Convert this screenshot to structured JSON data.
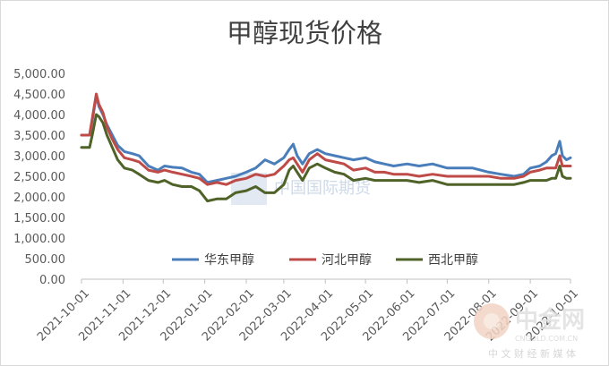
{
  "chart_data": {
    "type": "line",
    "title": "甲醇现货价格",
    "xlabel": "",
    "ylabel": "",
    "ylim": [
      0,
      5000
    ],
    "yticks": [
      "0.00",
      "500.00",
      "1,000.00",
      "1,500.00",
      "2,000.00",
      "2,500.00",
      "3,000.00",
      "3,500.00",
      "4,000.00",
      "4,500.00",
      "5,000.00"
    ],
    "xlim": [
      "2021-10-01",
      "2022-10-01"
    ],
    "xticks": [
      "2021-10-01",
      "2021-11-01",
      "2021-12-01",
      "2022-01-01",
      "2022-02-01",
      "2022-03-01",
      "2022-04-01",
      "2022-05-01",
      "2022-06-01",
      "2022-07-01",
      "2022-08-01",
      "2022-09-01",
      "2022-10-01"
    ],
    "grid": false,
    "legend_position": "bottom-center",
    "series": [
      {
        "name": "华东甲醇",
        "color": "#4a7ebb",
        "points": [
          [
            "2021-10-01",
            3500
          ],
          [
            "2021-10-07",
            3500
          ],
          [
            "2021-10-09",
            3850
          ],
          [
            "2021-10-12",
            4450
          ],
          [
            "2021-10-14",
            4200
          ],
          [
            "2021-10-17",
            4000
          ],
          [
            "2021-10-20",
            3750
          ],
          [
            "2021-10-24",
            3500
          ],
          [
            "2021-10-28",
            3250
          ],
          [
            "2021-11-02",
            3100
          ],
          [
            "2021-11-08",
            3050
          ],
          [
            "2021-11-13",
            3000
          ],
          [
            "2021-11-20",
            2750
          ],
          [
            "2021-11-27",
            2650
          ],
          [
            "2021-12-02",
            2750
          ],
          [
            "2021-12-08",
            2720
          ],
          [
            "2021-12-15",
            2700
          ],
          [
            "2021-12-22",
            2600
          ],
          [
            "2021-12-28",
            2550
          ],
          [
            "2022-01-03",
            2350
          ],
          [
            "2022-01-10",
            2400
          ],
          [
            "2022-01-17",
            2450
          ],
          [
            "2022-01-24",
            2500
          ],
          [
            "2022-02-01",
            2600
          ],
          [
            "2022-02-08",
            2700
          ],
          [
            "2022-02-15",
            2900
          ],
          [
            "2022-02-22",
            2800
          ],
          [
            "2022-03-01",
            2950
          ],
          [
            "2022-03-05",
            3150
          ],
          [
            "2022-03-08",
            3280
          ],
          [
            "2022-03-11",
            3000
          ],
          [
            "2022-03-15",
            2800
          ],
          [
            "2022-03-20",
            3050
          ],
          [
            "2022-03-26",
            3150
          ],
          [
            "2022-04-01",
            3050
          ],
          [
            "2022-04-08",
            3000
          ],
          [
            "2022-04-15",
            2950
          ],
          [
            "2022-04-22",
            2900
          ],
          [
            "2022-05-01",
            2950
          ],
          [
            "2022-05-08",
            2850
          ],
          [
            "2022-05-15",
            2800
          ],
          [
            "2022-05-22",
            2750
          ],
          [
            "2022-06-01",
            2800
          ],
          [
            "2022-06-10",
            2750
          ],
          [
            "2022-06-20",
            2800
          ],
          [
            "2022-07-01",
            2700
          ],
          [
            "2022-07-10",
            2700
          ],
          [
            "2022-07-20",
            2700
          ],
          [
            "2022-08-01",
            2600
          ],
          [
            "2022-08-10",
            2550
          ],
          [
            "2022-08-20",
            2500
          ],
          [
            "2022-08-27",
            2550
          ],
          [
            "2022-09-01",
            2700
          ],
          [
            "2022-09-08",
            2750
          ],
          [
            "2022-09-13",
            2850
          ],
          [
            "2022-09-17",
            3000
          ],
          [
            "2022-09-20",
            3050
          ],
          [
            "2022-09-23",
            3350
          ],
          [
            "2022-09-25",
            3000
          ],
          [
            "2022-09-28",
            2900
          ],
          [
            "2022-10-01",
            2950
          ]
        ]
      },
      {
        "name": "河北甲醇",
        "color": "#be4b48",
        "points": [
          [
            "2021-10-01",
            3500
          ],
          [
            "2021-10-07",
            3500
          ],
          [
            "2021-10-09",
            3900
          ],
          [
            "2021-10-12",
            4500
          ],
          [
            "2021-10-14",
            4250
          ],
          [
            "2021-10-17",
            4050
          ],
          [
            "2021-10-20",
            3700
          ],
          [
            "2021-10-24",
            3400
          ],
          [
            "2021-10-28",
            3150
          ],
          [
            "2021-11-02",
            2950
          ],
          [
            "2021-11-08",
            2900
          ],
          [
            "2021-11-13",
            2850
          ],
          [
            "2021-11-20",
            2650
          ],
          [
            "2021-11-27",
            2600
          ],
          [
            "2021-12-02",
            2650
          ],
          [
            "2021-12-08",
            2600
          ],
          [
            "2021-12-15",
            2550
          ],
          [
            "2021-12-22",
            2500
          ],
          [
            "2021-12-28",
            2450
          ],
          [
            "2022-01-03",
            2300
          ],
          [
            "2022-01-10",
            2350
          ],
          [
            "2022-01-17",
            2300
          ],
          [
            "2022-01-24",
            2400
          ],
          [
            "2022-02-01",
            2450
          ],
          [
            "2022-02-08",
            2550
          ],
          [
            "2022-02-15",
            2500
          ],
          [
            "2022-02-22",
            2550
          ],
          [
            "2022-03-01",
            2750
          ],
          [
            "2022-03-05",
            2900
          ],
          [
            "2022-03-08",
            2950
          ],
          [
            "2022-03-11",
            2800
          ],
          [
            "2022-03-15",
            2600
          ],
          [
            "2022-03-20",
            2900
          ],
          [
            "2022-03-26",
            3050
          ],
          [
            "2022-04-01",
            2900
          ],
          [
            "2022-04-08",
            2850
          ],
          [
            "2022-04-15",
            2800
          ],
          [
            "2022-04-22",
            2650
          ],
          [
            "2022-05-01",
            2700
          ],
          [
            "2022-05-08",
            2600
          ],
          [
            "2022-05-15",
            2600
          ],
          [
            "2022-05-22",
            2550
          ],
          [
            "2022-06-01",
            2550
          ],
          [
            "2022-06-10",
            2500
          ],
          [
            "2022-06-20",
            2550
          ],
          [
            "2022-07-01",
            2500
          ],
          [
            "2022-07-10",
            2500
          ],
          [
            "2022-07-20",
            2500
          ],
          [
            "2022-08-01",
            2500
          ],
          [
            "2022-08-10",
            2450
          ],
          [
            "2022-08-20",
            2450
          ],
          [
            "2022-08-27",
            2500
          ],
          [
            "2022-09-01",
            2600
          ],
          [
            "2022-09-08",
            2650
          ],
          [
            "2022-09-13",
            2700
          ],
          [
            "2022-09-17",
            2700
          ],
          [
            "2022-09-20",
            2700
          ],
          [
            "2022-09-23",
            3000
          ],
          [
            "2022-09-25",
            2750
          ],
          [
            "2022-09-28",
            2750
          ],
          [
            "2022-10-01",
            2750
          ]
        ]
      },
      {
        "name": "西北甲醇",
        "color": "#4f6228",
        "points": [
          [
            "2021-10-01",
            3200
          ],
          [
            "2021-10-07",
            3200
          ],
          [
            "2021-10-09",
            3500
          ],
          [
            "2021-10-12",
            4000
          ],
          [
            "2021-10-14",
            3950
          ],
          [
            "2021-10-17",
            3800
          ],
          [
            "2021-10-20",
            3500
          ],
          [
            "2021-10-24",
            3200
          ],
          [
            "2021-10-28",
            2900
          ],
          [
            "2021-11-02",
            2700
          ],
          [
            "2021-11-08",
            2650
          ],
          [
            "2021-11-13",
            2550
          ],
          [
            "2021-11-20",
            2400
          ],
          [
            "2021-11-27",
            2350
          ],
          [
            "2021-12-02",
            2400
          ],
          [
            "2021-12-08",
            2300
          ],
          [
            "2021-12-15",
            2250
          ],
          [
            "2021-12-22",
            2250
          ],
          [
            "2021-12-28",
            2150
          ],
          [
            "2022-01-03",
            1900
          ],
          [
            "2022-01-10",
            1950
          ],
          [
            "2022-01-17",
            1950
          ],
          [
            "2022-01-24",
            2100
          ],
          [
            "2022-02-01",
            2150
          ],
          [
            "2022-02-08",
            2250
          ],
          [
            "2022-02-15",
            2100
          ],
          [
            "2022-02-22",
            2100
          ],
          [
            "2022-03-01",
            2300
          ],
          [
            "2022-03-05",
            2650
          ],
          [
            "2022-03-08",
            2750
          ],
          [
            "2022-03-11",
            2600
          ],
          [
            "2022-03-15",
            2400
          ],
          [
            "2022-03-20",
            2700
          ],
          [
            "2022-03-26",
            2800
          ],
          [
            "2022-04-01",
            2700
          ],
          [
            "2022-04-08",
            2600
          ],
          [
            "2022-04-15",
            2550
          ],
          [
            "2022-04-22",
            2400
          ],
          [
            "2022-05-01",
            2450
          ],
          [
            "2022-05-08",
            2400
          ],
          [
            "2022-05-15",
            2400
          ],
          [
            "2022-05-22",
            2400
          ],
          [
            "2022-06-01",
            2400
          ],
          [
            "2022-06-10",
            2350
          ],
          [
            "2022-06-20",
            2400
          ],
          [
            "2022-07-01",
            2300
          ],
          [
            "2022-07-10",
            2300
          ],
          [
            "2022-07-20",
            2300
          ],
          [
            "2022-08-01",
            2300
          ],
          [
            "2022-08-10",
            2300
          ],
          [
            "2022-08-20",
            2300
          ],
          [
            "2022-08-27",
            2350
          ],
          [
            "2022-09-01",
            2400
          ],
          [
            "2022-09-08",
            2400
          ],
          [
            "2022-09-13",
            2400
          ],
          [
            "2022-09-17",
            2450
          ],
          [
            "2022-09-20",
            2450
          ],
          [
            "2022-09-23",
            2750
          ],
          [
            "2022-09-25",
            2500
          ],
          [
            "2022-09-28",
            2450
          ],
          [
            "2022-10-01",
            2450
          ]
        ]
      }
    ]
  },
  "watermarks": {
    "center_text": "中国国际期货",
    "logo_main": "中金网",
    "logo_url": "CNGOLD.COM.CN",
    "logo_tagline": "中 文 财 经 新 媒 体"
  }
}
